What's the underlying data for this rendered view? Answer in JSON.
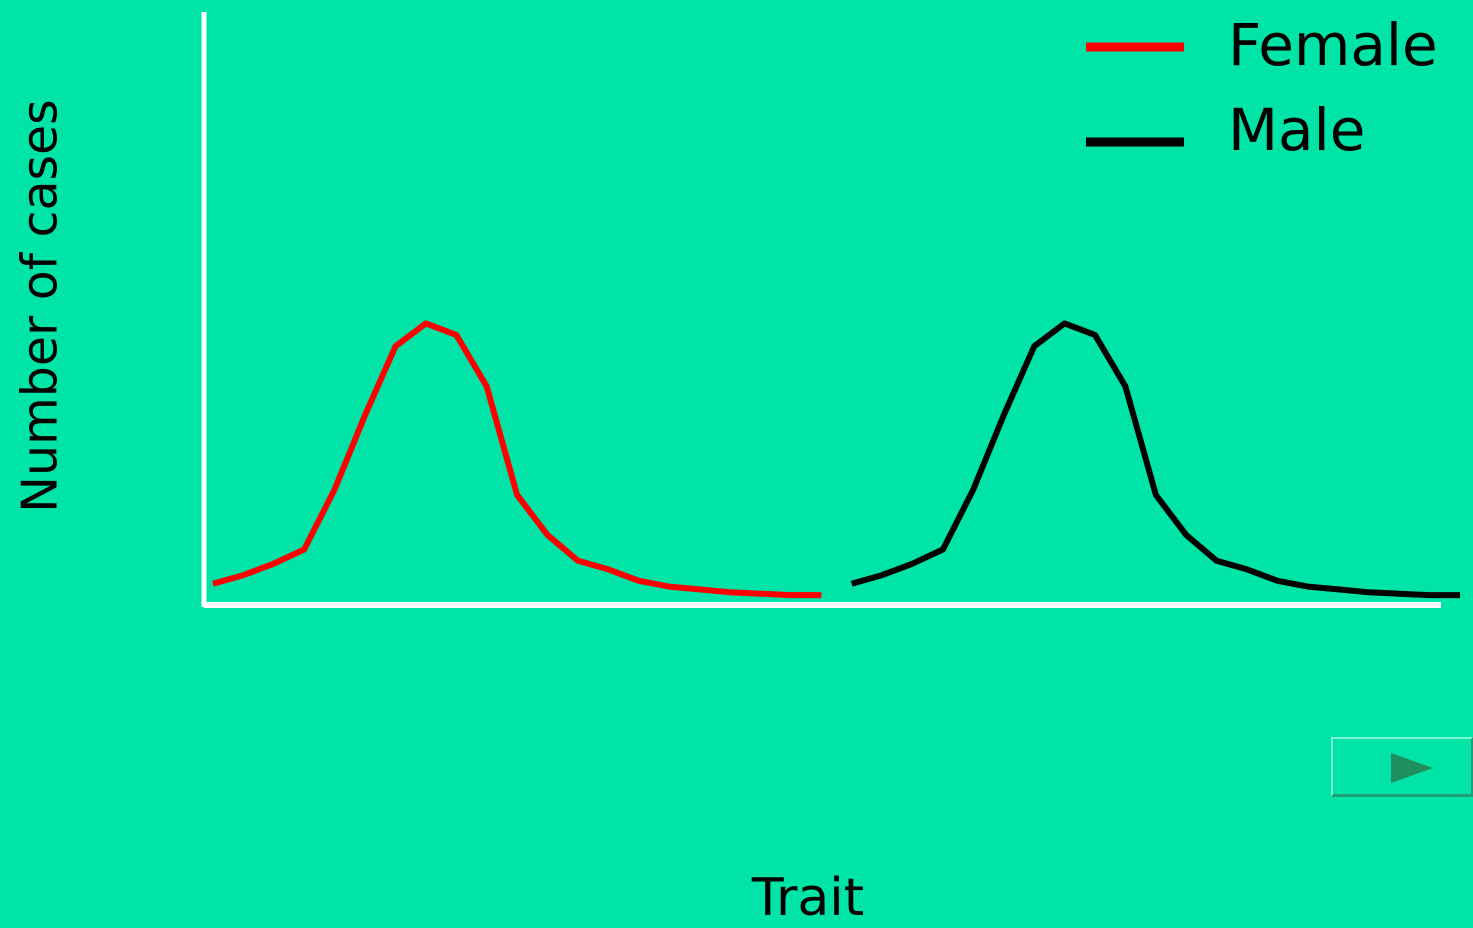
{
  "chart_data": {
    "type": "line",
    "xlabel": "Trait",
    "ylabel": "Number of cases",
    "ylim": [
      0,
      10
    ],
    "legend_position": "top-right",
    "series": [
      {
        "name": "Female",
        "color": "#FF0000",
        "x": [
          0.0,
          0.5,
          1.0,
          1.5,
          2.0,
          2.5,
          3.0,
          3.5,
          4.0,
          4.5,
          5.0,
          5.5,
          6.0,
          6.5,
          7.0,
          7.5,
          8.0,
          8.5,
          9.0,
          9.5,
          10.0
        ],
        "values": [
          0.5,
          0.8,
          1.2,
          1.7,
          3.8,
          6.4,
          8.8,
          9.6,
          9.2,
          7.4,
          3.6,
          2.2,
          1.3,
          1.0,
          0.6,
          0.4,
          0.3,
          0.2,
          0.15,
          0.1,
          0.1
        ]
      },
      {
        "name": "Male",
        "color": "#000000",
        "x": [
          10.5,
          11.0,
          11.5,
          12.0,
          12.5,
          13.0,
          13.5,
          14.0,
          14.5,
          15.0,
          15.5,
          16.0,
          16.5,
          17.0,
          17.5,
          18.0,
          18.5,
          19.0,
          19.5,
          20.0,
          20.5
        ],
        "values": [
          0.5,
          0.8,
          1.2,
          1.7,
          3.8,
          6.4,
          8.8,
          9.6,
          9.2,
          7.4,
          3.6,
          2.2,
          1.3,
          1.0,
          0.6,
          0.4,
          0.3,
          0.2,
          0.15,
          0.1,
          0.1
        ]
      }
    ]
  },
  "legend": {
    "female_label": "Female",
    "male_label": "Male"
  },
  "nav": {
    "next_icon": "play-triangle-icon"
  }
}
